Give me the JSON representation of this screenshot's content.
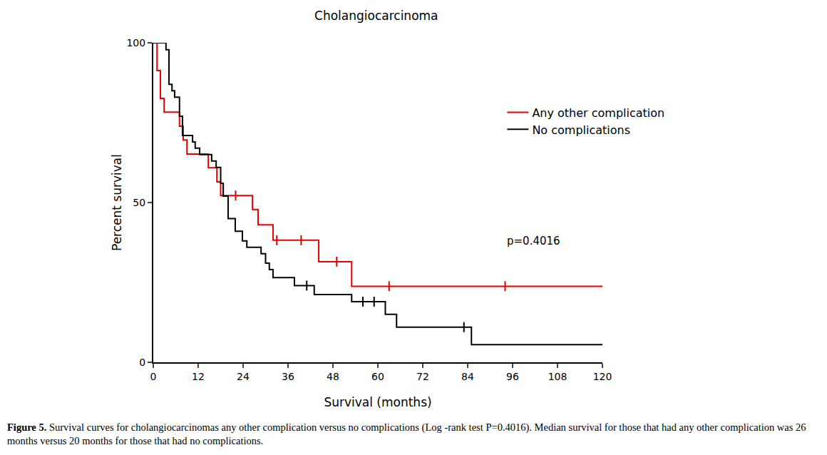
{
  "chart_data": {
    "type": "step",
    "title": "Cholangiocarcinoma",
    "x_label": "Survival (months)",
    "y_label": "Percent survival",
    "xlim": [
      0,
      120
    ],
    "xticks": [
      0,
      12,
      24,
      36,
      48,
      60,
      72,
      84,
      96,
      108,
      120
    ],
    "ylim": [
      0,
      100
    ],
    "yticks": [
      0,
      50,
      100
    ],
    "grid": false,
    "legend": "upper right",
    "marker": "tick",
    "series": [
      {
        "name": "Any other complication",
        "color": "#e60000",
        "x": [
          0,
          1,
          1.9,
          2.9,
          7,
          8,
          9,
          14.7,
          17,
          18,
          26.5,
          28,
          32,
          44.2,
          53,
          120
        ],
        "values": [
          100,
          91.3,
          82.6,
          78.3,
          73.9,
          69.6,
          65.2,
          60.9,
          56.5,
          52.2,
          47.8,
          43,
          38.2,
          31.5,
          23.8,
          23.8
        ],
        "censor_x": [
          22,
          33,
          39.5,
          49,
          63,
          94
        ],
        "censor_values": [
          52.2,
          38.2,
          38.2,
          31.5,
          23.8,
          23.8
        ]
      },
      {
        "name": "No complications",
        "color": "#000000",
        "x": [
          0,
          3.4,
          4.2,
          5,
          5.7,
          7,
          7.8,
          10.5,
          11.2,
          12.4,
          15.6,
          16.8,
          18,
          18.7,
          20,
          21.9,
          23.8,
          25,
          28.8,
          30,
          31,
          32,
          37.7,
          43,
          53,
          62,
          65,
          85,
          120
        ],
        "values": [
          100,
          97.8,
          87,
          85,
          83,
          77,
          71,
          69,
          67,
          65,
          63,
          61,
          56,
          52,
          45,
          41,
          38,
          36,
          34,
          31,
          29,
          26.5,
          24,
          21.2,
          19,
          15,
          11,
          5.5,
          5.5
        ],
        "censor_x": [
          41,
          56,
          59,
          83
        ],
        "censor_values": [
          24,
          19,
          19,
          11
        ]
      }
    ],
    "annotations": [
      {
        "text": "p=0.4016",
        "x": 94,
        "y": 38
      }
    ],
    "caption": {
      "label": "Figure 5.",
      "text": "Survival curves for cholangiocarcinomas any other complication versus no complications (Log -rank test P=0.4016).  Median survival for those that had any other complication was 26 months versus 20 months for those that had no complications."
    }
  }
}
